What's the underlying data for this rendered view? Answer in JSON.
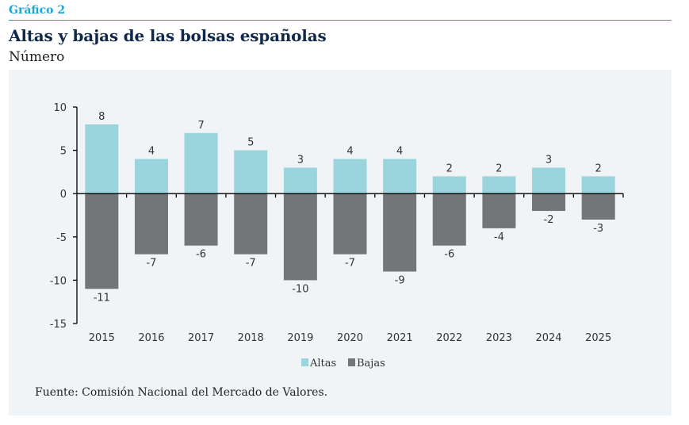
{
  "header": {
    "label": "Gráfico 2",
    "title": "Altas y bajas de las bolsas españolas",
    "subtitle": "Número"
  },
  "source": "Fuente: Comisión Nacional del Mercado de Valores.",
  "colors": {
    "altas": "#9ad4dc",
    "bajas": "#737678",
    "accent": "#1aa7d4",
    "title": "#10294a"
  },
  "chart_data": {
    "type": "bar",
    "title": "Altas y bajas de las bolsas españolas",
    "ylabel": "Número",
    "xlabel": "",
    "categories": [
      "2015",
      "2016",
      "2017",
      "2018",
      "2019",
      "2020",
      "2021",
      "2022",
      "2023",
      "2024",
      "2025"
    ],
    "series": [
      {
        "name": "Altas",
        "values": [
          8,
          4,
          7,
          5,
          3,
          4,
          4,
          2,
          2,
          3,
          2
        ]
      },
      {
        "name": "Bajas",
        "values": [
          -11,
          -7,
          -6,
          -7,
          -10,
          -7,
          -9,
          -6,
          -4,
          -2,
          -3
        ]
      }
    ],
    "ylim": [
      -15,
      10
    ],
    "yticks": [
      10,
      5,
      0,
      -5,
      -10,
      -15
    ],
    "stacked": true,
    "grid": false,
    "legend": "bottom-center",
    "data_labels": true
  }
}
